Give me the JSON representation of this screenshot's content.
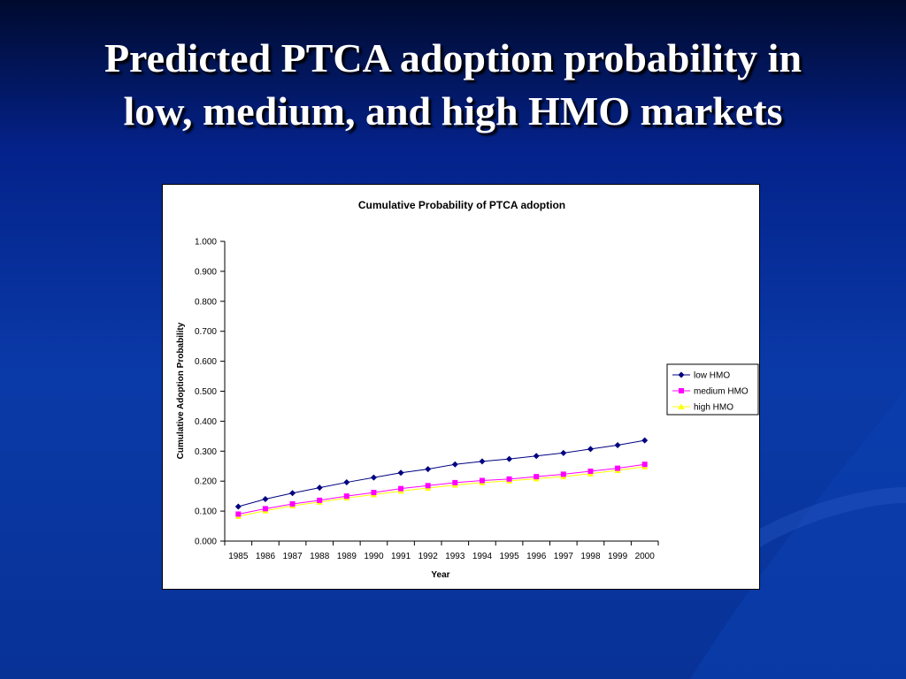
{
  "slide": {
    "title_line1": "Predicted PTCA adoption probability in",
    "title_line2": "low, medium, and high HMO markets"
  },
  "chart_data": {
    "type": "line",
    "title": "Cumulative Probability of PTCA adoption",
    "xlabel": "Year",
    "ylabel": "Cumulative Adoption Probability",
    "categories": [
      "1985",
      "1986",
      "1987",
      "1988",
      "1989",
      "1990",
      "1991",
      "1992",
      "1993",
      "1994",
      "1995",
      "1996",
      "1997",
      "1998",
      "1999",
      "2000"
    ],
    "ylim": [
      0,
      1
    ],
    "yticks": [
      "0.000",
      "0.100",
      "0.200",
      "0.300",
      "0.400",
      "0.500",
      "0.600",
      "0.700",
      "0.800",
      "0.900",
      "1.000"
    ],
    "grid": false,
    "legend_position": "right",
    "series": [
      {
        "name": "low HMO",
        "color": "#000080",
        "marker": "diamond",
        "values": [
          0.115,
          0.14,
          0.16,
          0.178,
          0.196,
          0.212,
          0.228,
          0.24,
          0.256,
          0.266,
          0.274,
          0.284,
          0.294,
          0.307,
          0.32,
          0.336
        ]
      },
      {
        "name": "medium HMO",
        "color": "#ff00ff",
        "marker": "square",
        "values": [
          0.09,
          0.108,
          0.124,
          0.136,
          0.15,
          0.162,
          0.175,
          0.185,
          0.195,
          0.202,
          0.207,
          0.215,
          0.223,
          0.233,
          0.243,
          0.256
        ]
      },
      {
        "name": "high HMO",
        "color": "#ffff00",
        "marker": "triangle",
        "values": [
          0.083,
          0.101,
          0.118,
          0.13,
          0.144,
          0.155,
          0.167,
          0.177,
          0.187,
          0.195,
          0.201,
          0.208,
          0.215,
          0.225,
          0.236,
          0.248
        ]
      }
    ]
  }
}
